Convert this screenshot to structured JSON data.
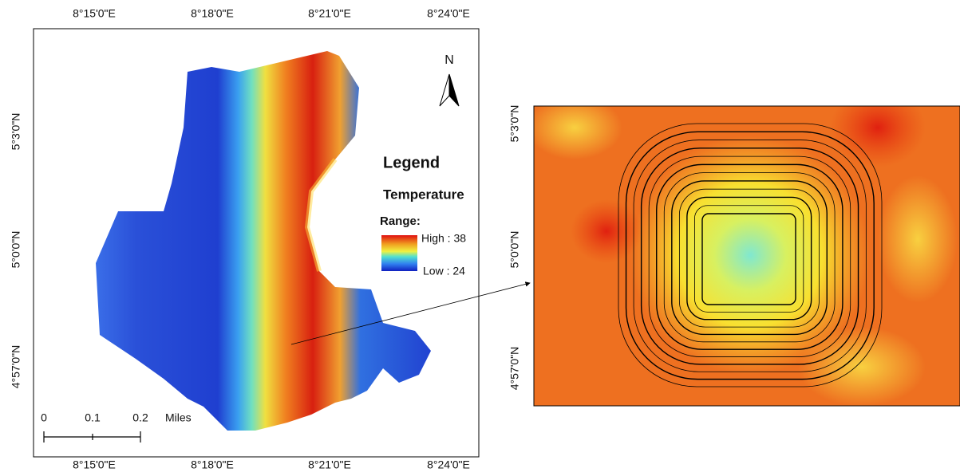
{
  "map": {
    "top_axis_labels": [
      "8°15'0\"E",
      "8°18'0\"E",
      "8°21'0\"E",
      "8°24'0\"E"
    ],
    "bottom_axis_labels": [
      "8°15'0\"E",
      "8°18'0\"E",
      "8°21'0\"E",
      "8°24'0\"E"
    ],
    "left_axis_labels": [
      "5°3'0\"N",
      "5°0'0\"N",
      "4°57'0\"N"
    ],
    "north_label": "N",
    "legend": {
      "title": "Legend",
      "subtitle": "Temperature",
      "range_label": "Range:",
      "high_label": "High : 38",
      "low_label": "Low : 24"
    },
    "scale_bar": {
      "labels": [
        "0",
        "0.1",
        "0.2"
      ],
      "unit": "Miles"
    }
  },
  "inset": {
    "left_axis_labels": [
      "5°3'0\"N",
      "5°0'0\"N",
      "4°57'0\"N"
    ]
  }
}
